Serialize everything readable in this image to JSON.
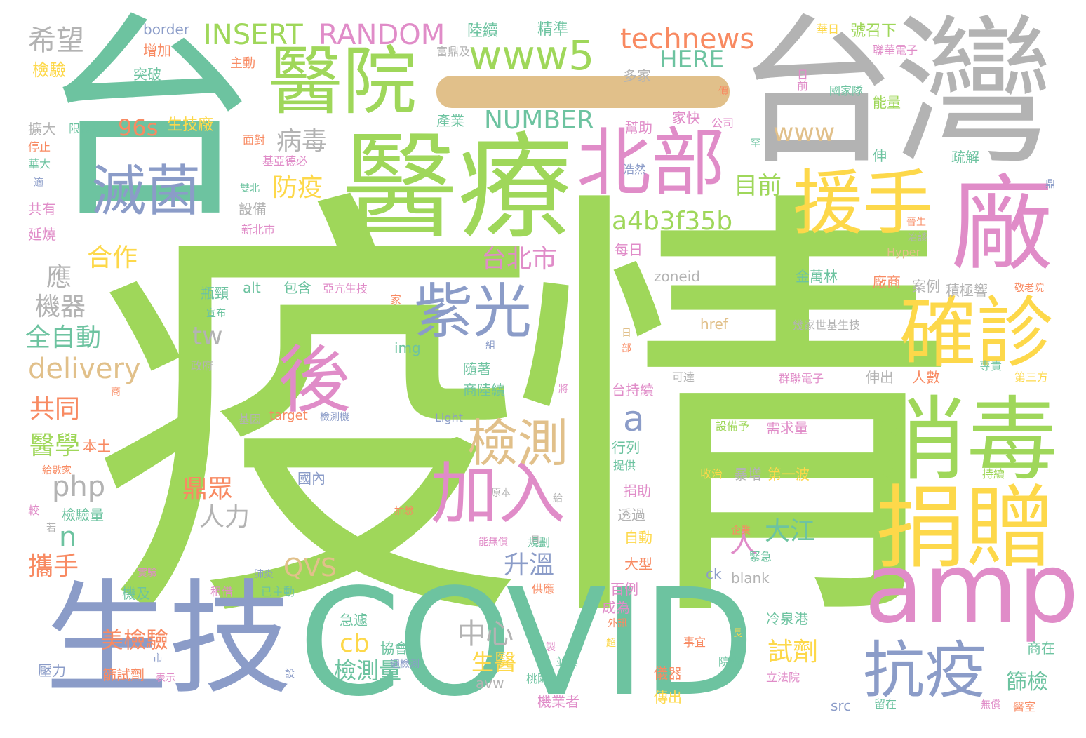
{
  "cloud": {
    "palette": {
      "green": "#9fd75a",
      "teal": "#6dc3a0",
      "purple": "#8b9cc8",
      "gray": "#b3b3b3",
      "pink": "#e08cc8",
      "yellow": "#fdd84a",
      "orange": "#f88a62",
      "tan": "#e1c08a"
    },
    "words": [
      {
        "text": "疫情",
        "color": "green"
      },
      {
        "text": "台灣",
        "color": "gray"
      },
      {
        "text": "台",
        "color": "teal"
      },
      {
        "text": "COVID",
        "color": "teal"
      },
      {
        "text": "醫療",
        "color": "green"
      },
      {
        "text": "生技",
        "color": "purple"
      },
      {
        "text": "廠",
        "color": "pink"
      },
      {
        "text": "北部",
        "color": "pink"
      },
      {
        "text": "醫院",
        "color": "green"
      },
      {
        "text": "消毒",
        "color": "green"
      },
      {
        "text": "捐贈",
        "color": "yellow"
      },
      {
        "text": "amp",
        "color": "pink"
      },
      {
        "text": "援手",
        "color": "yellow"
      },
      {
        "text": "確診",
        "color": "yellow"
      },
      {
        "text": "抗疫",
        "color": "purple"
      },
      {
        "text": "加入",
        "color": "pink"
      },
      {
        "text": "後",
        "color": "pink"
      },
      {
        "text": "滅菌",
        "color": "purple"
      },
      {
        "text": "紫光",
        "color": "purple"
      },
      {
        "text": "檢測",
        "color": "tan"
      },
      {
        "text": "www5",
        "color": "green"
      },
      {
        "text": "technews",
        "color": "orange"
      },
      {
        "text": "INSERT",
        "color": "green"
      },
      {
        "text": "RANDOM",
        "color": "pink"
      },
      {
        "text": "HERE",
        "color": "teal"
      },
      {
        "text": "NUMBER",
        "color": "teal"
      },
      {
        "text": "www",
        "color": "tan"
      },
      {
        "text": "a4b3f35b",
        "color": "green"
      },
      {
        "text": "delivery",
        "color": "tan"
      },
      {
        "text": "php",
        "color": "gray"
      },
      {
        "text": "希望",
        "color": "gray"
      },
      {
        "text": "病毒",
        "color": "gray"
      },
      {
        "text": "防疫",
        "color": "yellow"
      },
      {
        "text": "目前",
        "color": "green"
      },
      {
        "text": "96s",
        "color": "orange"
      },
      {
        "text": "生技廠",
        "color": "yellow"
      },
      {
        "text": "合作",
        "color": "yellow"
      },
      {
        "text": "應",
        "color": "gray"
      },
      {
        "text": "機器",
        "color": "gray"
      },
      {
        "text": "全自動",
        "color": "teal"
      },
      {
        "text": "tw",
        "color": "gray"
      },
      {
        "text": "a",
        "color": "purple"
      },
      {
        "text": "台北市",
        "color": "pink"
      },
      {
        "text": "共同",
        "color": "orange"
      },
      {
        "text": "醫學",
        "color": "green"
      },
      {
        "text": "鼎眾",
        "color": "orange"
      },
      {
        "text": "人力",
        "color": "gray"
      },
      {
        "text": "大江",
        "color": "teal"
      },
      {
        "text": "人",
        "color": "pink"
      },
      {
        "text": "n",
        "color": "teal"
      },
      {
        "text": "升溫",
        "color": "purple"
      },
      {
        "text": "攜手",
        "color": "orange"
      },
      {
        "text": "QVS",
        "color": "tan"
      },
      {
        "text": "中心",
        "color": "gray"
      },
      {
        "text": "cb",
        "color": "yellow"
      },
      {
        "text": "美檢驗",
        "color": "orange"
      },
      {
        "text": "檢測量",
        "color": "teal"
      },
      {
        "text": "生醫",
        "color": "yellow"
      },
      {
        "text": "試劑",
        "color": "yellow"
      },
      {
        "text": "篩檢",
        "color": "teal"
      },
      {
        "text": "陸續",
        "color": "teal"
      },
      {
        "text": "精準",
        "color": "teal"
      },
      {
        "text": "border",
        "color": "purple"
      },
      {
        "text": "增加",
        "color": "orange"
      },
      {
        "text": "檢驗",
        "color": "yellow"
      },
      {
        "text": "主動",
        "color": "orange"
      },
      {
        "text": "突破",
        "color": "teal"
      },
      {
        "text": "富鼎及",
        "color": "gray"
      },
      {
        "text": "多家",
        "color": "gray"
      },
      {
        "text": "幫助",
        "color": "pink"
      },
      {
        "text": "家快",
        "color": "pink"
      },
      {
        "text": "公司",
        "color": "pink"
      },
      {
        "text": "產業",
        "color": "teal"
      },
      {
        "text": "號召下",
        "color": "green"
      },
      {
        "text": "日前",
        "color": "pink"
      },
      {
        "text": "國家隊",
        "color": "teal"
      },
      {
        "text": "聯華電子",
        "color": "pink"
      },
      {
        "text": "能量",
        "color": "green"
      },
      {
        "text": "華日",
        "color": "yellow"
      },
      {
        "text": "擴大",
        "color": "gray"
      },
      {
        "text": "限機構",
        "color": "teal"
      },
      {
        "text": "停止",
        "color": "orange"
      },
      {
        "text": "華大",
        "color": "teal"
      },
      {
        "text": "共有",
        "color": "pink"
      },
      {
        "text": "延燒",
        "color": "pink"
      },
      {
        "text": "設備",
        "color": "gray"
      },
      {
        "text": "新北市",
        "color": "pink"
      },
      {
        "text": "每日",
        "color": "pink"
      },
      {
        "text": "浩然",
        "color": "purple"
      },
      {
        "text": "疏解",
        "color": "teal"
      },
      {
        "text": "伸",
        "color": "teal"
      },
      {
        "text": "面對",
        "color": "orange"
      },
      {
        "text": "基亞德必",
        "color": "pink"
      },
      {
        "text": "雙北",
        "color": "teal"
      },
      {
        "text": "alt",
        "color": "teal"
      },
      {
        "text": "包含",
        "color": "teal"
      },
      {
        "text": "亞亢生技",
        "color": "pink"
      },
      {
        "text": "zoneid",
        "color": "gray"
      },
      {
        "text": "金萬林",
        "color": "teal"
      },
      {
        "text": "廠商",
        "color": "orange"
      },
      {
        "text": "案例",
        "color": "gray"
      },
      {
        "text": "積極響",
        "color": "gray"
      },
      {
        "text": "瓶頸",
        "color": "teal"
      },
      {
        "text": "宣布",
        "color": "teal"
      },
      {
        "text": "家",
        "color": "orange"
      },
      {
        "text": "href",
        "color": "tan"
      },
      {
        "text": "幾家世基生技",
        "color": "gray"
      },
      {
        "text": "img",
        "color": "teal"
      },
      {
        "text": "政府",
        "color": "gray"
      },
      {
        "text": "隨著",
        "color": "teal"
      },
      {
        "text": "商陸續",
        "color": "teal"
      },
      {
        "text": "台持續",
        "color": "pink"
      },
      {
        "text": "可達",
        "color": "gray"
      },
      {
        "text": "群聯電子",
        "color": "pink"
      },
      {
        "text": "伸出",
        "color": "gray"
      },
      {
        "text": "人數",
        "color": "orange"
      },
      {
        "text": "專責",
        "color": "teal"
      },
      {
        "text": "第三方",
        "color": "yellow"
      },
      {
        "text": "Hyper",
        "color": "tan"
      },
      {
        "text": "Light",
        "color": "purple"
      },
      {
        "text": "target",
        "color": "orange"
      },
      {
        "text": "檢測機",
        "color": "purple"
      },
      {
        "text": "基因",
        "color": "gray"
      },
      {
        "text": "設備予",
        "color": "green"
      },
      {
        "text": "需求量",
        "color": "pink"
      },
      {
        "text": "行列",
        "color": "teal"
      },
      {
        "text": "提供",
        "color": "teal"
      },
      {
        "text": "收治",
        "color": "yellow"
      },
      {
        "text": "暴增",
        "color": "gray"
      },
      {
        "text": "第一波",
        "color": "yellow"
      },
      {
        "text": "持續",
        "color": "green"
      },
      {
        "text": "本土",
        "color": "orange"
      },
      {
        "text": "國內",
        "color": "purple"
      },
      {
        "text": "原本",
        "color": "gray"
      },
      {
        "text": "捐助",
        "color": "pink"
      },
      {
        "text": "透過",
        "color": "gray"
      },
      {
        "text": "自動",
        "color": "yellow"
      },
      {
        "text": "大型",
        "color": "orange"
      },
      {
        "text": "百例",
        "color": "pink"
      },
      {
        "text": "成為",
        "color": "pink"
      },
      {
        "text": "檢驗量",
        "color": "teal"
      },
      {
        "text": "能無償",
        "color": "pink"
      },
      {
        "text": "規劃",
        "color": "teal"
      },
      {
        "text": "企業",
        "color": "orange"
      },
      {
        "text": "緊急",
        "color": "teal"
      },
      {
        "text": "冷泉港",
        "color": "teal"
      },
      {
        "text": "blank",
        "color": "gray"
      },
      {
        "text": "ck",
        "color": "purple"
      },
      {
        "text": "機及",
        "color": "teal"
      },
      {
        "text": "租借",
        "color": "pink"
      },
      {
        "text": "已主動",
        "color": "teal"
      },
      {
        "text": "肺炎",
        "color": "purple"
      },
      {
        "text": "急遽",
        "color": "teal"
      },
      {
        "text": "協會",
        "color": "teal"
      },
      {
        "text": "並與",
        "color": "teal"
      },
      {
        "text": "桃園",
        "color": "teal"
      },
      {
        "text": "avw",
        "color": "gray"
      },
      {
        "text": "機業者",
        "color": "pink"
      },
      {
        "text": "壓力",
        "color": "purple"
      },
      {
        "text": "篩試劑",
        "color": "orange"
      },
      {
        "text": "表示",
        "color": "pink"
      },
      {
        "text": "儀器",
        "color": "orange"
      },
      {
        "text": "傳出",
        "color": "yellow"
      },
      {
        "text": "事宜",
        "color": "orange"
      },
      {
        "text": "立法院",
        "color": "pink"
      },
      {
        "text": "src",
        "color": "purple"
      },
      {
        "text": "留在",
        "color": "teal"
      },
      {
        "text": "無償",
        "color": "pink"
      },
      {
        "text": "商在",
        "color": "teal"
      },
      {
        "text": "醫室",
        "color": "orange"
      },
      {
        "text": "院所",
        "color": "teal"
      },
      {
        "text": "外訊",
        "color": "orange"
      },
      {
        "text": "供應",
        "color": "orange"
      },
      {
        "text": "實驗",
        "color": "pink"
      },
      {
        "text": "給數家",
        "color": "orange"
      },
      {
        "text": "較",
        "color": "pink"
      },
      {
        "text": "若",
        "color": "gray"
      },
      {
        "text": "將",
        "color": "pink"
      },
      {
        "text": "商",
        "color": "orange"
      },
      {
        "text": "超",
        "color": "yellow"
      },
      {
        "text": "長",
        "color": "yellow"
      },
      {
        "text": "設",
        "color": "purple"
      },
      {
        "text": "市",
        "color": "purple"
      },
      {
        "text": "月",
        "color": "gray"
      },
      {
        "text": "給",
        "color": "gray"
      },
      {
        "text": "抽驗",
        "color": "orange"
      },
      {
        "text": "製",
        "color": "pink"
      },
      {
        "text": "日",
        "color": "tan"
      },
      {
        "text": "部",
        "color": "orange"
      },
      {
        "text": "適",
        "color": "purple"
      },
      {
        "text": "鼎",
        "color": "purple"
      },
      {
        "text": "罕",
        "color": "teal"
      },
      {
        "text": "價",
        "color": "orange"
      },
      {
        "text": "冶談",
        "color": "gray"
      },
      {
        "text": "晉生",
        "color": "orange"
      },
      {
        "text": "敬老院",
        "color": "orange"
      },
      {
        "text": "組",
        "color": "purple"
      },
      {
        "text": "遍檢測",
        "color": "purple"
      }
    ]
  }
}
